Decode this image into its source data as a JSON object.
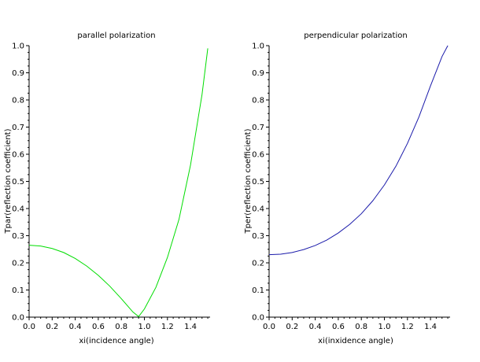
{
  "chart_data": [
    {
      "type": "line",
      "title": "parallel polarization",
      "xlabel": "xi(incidence angle)",
      "ylabel": "Tpar(reflection coefficient)",
      "xlim": [
        0.0,
        1.57
      ],
      "ylim": [
        0.0,
        1.0
      ],
      "xticks": [
        "0.0",
        "0.2",
        "0.4",
        "0.6",
        "0.8",
        "1.0",
        "1.2",
        "1.4"
      ],
      "yticks": [
        "0.0",
        "0.1",
        "0.2",
        "0.3",
        "0.4",
        "0.5",
        "0.6",
        "0.7",
        "0.8",
        "0.9",
        "1.0"
      ],
      "grid": false,
      "series": [
        {
          "color": "#00dd00",
          "x": [
            0.0,
            0.1,
            0.2,
            0.3,
            0.4,
            0.5,
            0.6,
            0.7,
            0.8,
            0.9,
            0.95,
            1.0,
            1.1,
            1.2,
            1.3,
            1.4,
            1.5,
            1.55
          ],
          "y": [
            0.265,
            0.262,
            0.253,
            0.238,
            0.216,
            0.188,
            0.154,
            0.114,
            0.068,
            0.019,
            0.002,
            0.03,
            0.11,
            0.22,
            0.36,
            0.56,
            0.82,
            0.99
          ]
        }
      ]
    },
    {
      "type": "line",
      "title": "perpendicular polarization",
      "xlabel": "xi(inxidence angle)",
      "ylabel": "Tper(reflection coefficient)",
      "xlim": [
        0.0,
        1.57
      ],
      "ylim": [
        0.0,
        1.0
      ],
      "xticks": [
        "0.0",
        "0.2",
        "0.4",
        "0.6",
        "0.8",
        "1.0",
        "1.2",
        "1.4"
      ],
      "yticks": [
        "0.0",
        "0.1",
        "0.2",
        "0.3",
        "0.4",
        "0.5",
        "0.6",
        "0.7",
        "0.8",
        "0.9",
        "1.0"
      ],
      "grid": false,
      "series": [
        {
          "color": "#1a1aaa",
          "x": [
            0.0,
            0.1,
            0.2,
            0.3,
            0.4,
            0.5,
            0.6,
            0.7,
            0.8,
            0.9,
            1.0,
            1.1,
            1.2,
            1.3,
            1.4,
            1.5,
            1.55
          ],
          "y": [
            0.23,
            0.232,
            0.238,
            0.249,
            0.264,
            0.284,
            0.31,
            0.342,
            0.381,
            0.429,
            0.487,
            0.556,
            0.64,
            0.738,
            0.852,
            0.96,
            1.0
          ]
        }
      ]
    }
  ]
}
